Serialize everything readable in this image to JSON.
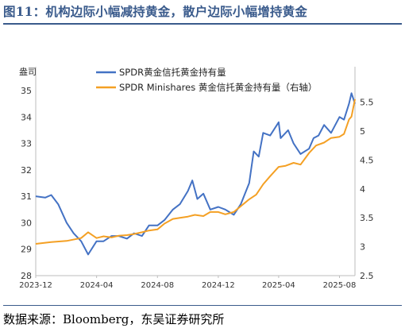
{
  "figure_title": "图11：机构边际小幅减持黄金，散户边际小幅增持黄金",
  "source": "数据来源：Bloomberg，东吴证券研究所",
  "colors": {
    "title": "#3a5b8c",
    "series1": "#4472C4",
    "series2": "#F4A024",
    "axis": "#bdbdbd"
  },
  "chart_data": {
    "type": "line",
    "y_left_label": "盎司",
    "x_ticks": [
      "2023-12",
      "2024-04",
      "2024-08",
      "2024-12",
      "2025-04",
      "2025-08"
    ],
    "y_left_ticks": [
      "28",
      "29",
      "30",
      "31",
      "32",
      "33",
      "34",
      "35"
    ],
    "y_right_ticks": [
      "2.5",
      "3",
      "3.5",
      "4",
      "4.5",
      "5",
      "5.5"
    ],
    "y_left_range": [
      28,
      35
    ],
    "y_right_range": [
      2.5,
      5.7
    ],
    "x_range": [
      "2023-12",
      "2025-09"
    ],
    "legend_position": "top-center",
    "series": [
      {
        "name": "SPDR黄金信托黄金持有量",
        "axis": "left",
        "color": "#4472C4",
        "points": [
          [
            "2023-12",
            31.0
          ],
          [
            "2023-12-20",
            30.95
          ],
          [
            "2024-01",
            31.05
          ],
          [
            "2024-01-15",
            30.7
          ],
          [
            "2024-02",
            30.0
          ],
          [
            "2024-02-15",
            29.6
          ],
          [
            "2024-03",
            29.3
          ],
          [
            "2024-03-15",
            28.8
          ],
          [
            "2024-04",
            29.3
          ],
          [
            "2024-04-15",
            29.3
          ],
          [
            "2024-05",
            29.5
          ],
          [
            "2024-05-15",
            29.5
          ],
          [
            "2024-06",
            29.4
          ],
          [
            "2024-06-15",
            29.6
          ],
          [
            "2024-07",
            29.5
          ],
          [
            "2024-07-15",
            29.9
          ],
          [
            "2024-08",
            29.9
          ],
          [
            "2024-08-15",
            30.1
          ],
          [
            "2024-09",
            30.5
          ],
          [
            "2024-09-15",
            30.7
          ],
          [
            "2024-10",
            31.2
          ],
          [
            "2024-10-10",
            31.6
          ],
          [
            "2024-10-20",
            30.9
          ],
          [
            "2024-11",
            31.1
          ],
          [
            "2024-11-15",
            30.5
          ],
          [
            "2024-12",
            30.6
          ],
          [
            "2024-12-15",
            30.5
          ],
          [
            "2025-01",
            30.3
          ],
          [
            "2025-01-15",
            30.7
          ],
          [
            "2025-02",
            31.5
          ],
          [
            "2025-02-10",
            32.7
          ],
          [
            "2025-02-20",
            32.5
          ],
          [
            "2025-03",
            33.4
          ],
          [
            "2025-03-15",
            33.3
          ],
          [
            "2025-04",
            33.8
          ],
          [
            "2025-04-05",
            33.2
          ],
          [
            "2025-04-20",
            33.5
          ],
          [
            "2025-05",
            33.0
          ],
          [
            "2025-05-15",
            32.6
          ],
          [
            "2025-06",
            32.8
          ],
          [
            "2025-06-10",
            33.2
          ],
          [
            "2025-06-20",
            33.3
          ],
          [
            "2025-07",
            33.7
          ],
          [
            "2025-07-15",
            33.4
          ],
          [
            "2025-08",
            34.0
          ],
          [
            "2025-08-10",
            33.9
          ],
          [
            "2025-08-20",
            34.5
          ],
          [
            "2025-08-25",
            34.9
          ],
          [
            "2025-09",
            34.5
          ]
        ]
      },
      {
        "name": "SPDR Minishares 黄金信托黄金持有量（右轴）",
        "axis": "right",
        "color": "#F4A024",
        "points": [
          [
            "2023-12",
            3.05
          ],
          [
            "2024-01",
            3.08
          ],
          [
            "2024-02",
            3.1
          ],
          [
            "2024-03",
            3.15
          ],
          [
            "2024-03-15",
            3.25
          ],
          [
            "2024-04",
            3.15
          ],
          [
            "2024-04-15",
            3.18
          ],
          [
            "2024-05",
            3.16
          ],
          [
            "2024-05-15",
            3.19
          ],
          [
            "2024-06",
            3.2
          ],
          [
            "2024-06-15",
            3.22
          ],
          [
            "2024-07",
            3.25
          ],
          [
            "2024-07-15",
            3.28
          ],
          [
            "2024-08",
            3.3
          ],
          [
            "2024-08-15",
            3.4
          ],
          [
            "2024-09",
            3.48
          ],
          [
            "2024-09-15",
            3.5
          ],
          [
            "2024-10",
            3.52
          ],
          [
            "2024-10-15",
            3.55
          ],
          [
            "2024-11",
            3.53
          ],
          [
            "2024-11-15",
            3.6
          ],
          [
            "2024-12",
            3.6
          ],
          [
            "2024-12-15",
            3.56
          ],
          [
            "2025-01",
            3.6
          ],
          [
            "2025-01-15",
            3.7
          ],
          [
            "2025-02",
            3.82
          ],
          [
            "2025-02-15",
            3.9
          ],
          [
            "2025-03",
            4.08
          ],
          [
            "2025-03-15",
            4.22
          ],
          [
            "2025-04",
            4.38
          ],
          [
            "2025-04-15",
            4.4
          ],
          [
            "2025-05",
            4.45
          ],
          [
            "2025-05-15",
            4.42
          ],
          [
            "2025-06",
            4.62
          ],
          [
            "2025-06-15",
            4.75
          ],
          [
            "2025-07",
            4.8
          ],
          [
            "2025-07-15",
            4.88
          ],
          [
            "2025-08",
            4.9
          ],
          [
            "2025-08-10",
            4.95
          ],
          [
            "2025-08-20",
            5.2
          ],
          [
            "2025-08-25",
            5.25
          ],
          [
            "2025-09",
            5.55
          ]
        ]
      }
    ]
  }
}
